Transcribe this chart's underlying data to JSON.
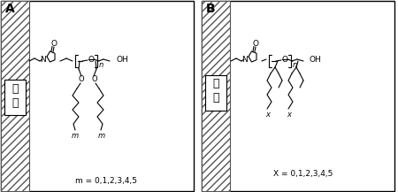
{
  "bg_color": "#ffffff",
  "line_color": "#000000",
  "figsize": [
    4.5,
    2.17
  ],
  "dpi": 100,
  "title_A": "A",
  "title_B": "B",
  "label_nylon": "尼龙",
  "label_m": "m = 0,1,2,3,4,5",
  "label_x": "X = 0,1,2,3,4,5"
}
